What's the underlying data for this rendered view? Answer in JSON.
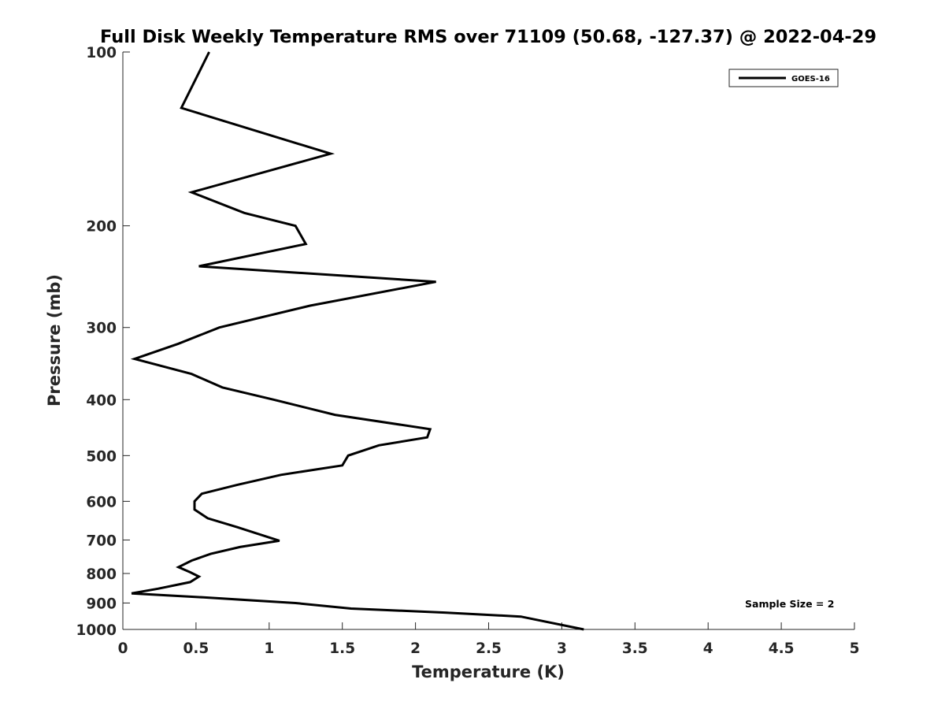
{
  "chart_data": {
    "type": "line",
    "title": "Full Disk Weekly Temperature RMS over 71109 (50.68, -127.37) @ 2022-04-29",
    "xlabel": "Temperature (K)",
    "ylabel": "Pressure (mb)",
    "xlim": [
      0,
      5
    ],
    "ylim": [
      100,
      1000
    ],
    "yscale": "log",
    "y_reversed": true,
    "grid": false,
    "legend_position": "top-right",
    "x_ticks": [
      "0",
      "0.5",
      "1",
      "1.5",
      "2",
      "2.5",
      "3",
      "3.5",
      "4",
      "4.5",
      "5"
    ],
    "y_ticks": [
      "100",
      "200",
      "300",
      "400",
      "500",
      "600",
      "700",
      "800",
      "900",
      "1000"
    ],
    "series": [
      {
        "name": "GOES-16",
        "color": "#000000",
        "points": [
          [
            0.59,
            100
          ],
          [
            0.4,
            125
          ],
          [
            1.42,
            150
          ],
          [
            0.47,
            175
          ],
          [
            0.83,
            190
          ],
          [
            1.18,
            200
          ],
          [
            1.25,
            215
          ],
          [
            0.52,
            235
          ],
          [
            2.14,
            250
          ],
          [
            1.28,
            275
          ],
          [
            0.66,
            300
          ],
          [
            0.38,
            320
          ],
          [
            0.08,
            340
          ],
          [
            0.47,
            361
          ],
          [
            0.68,
            381
          ],
          [
            1.03,
            400
          ],
          [
            1.45,
            425
          ],
          [
            2.1,
            450
          ],
          [
            2.08,
            465
          ],
          [
            1.75,
            480
          ],
          [
            1.54,
            500
          ],
          [
            1.5,
            520
          ],
          [
            1.08,
            540
          ],
          [
            0.78,
            562
          ],
          [
            0.54,
            582
          ],
          [
            0.49,
            600
          ],
          [
            0.49,
            620
          ],
          [
            0.58,
            642
          ],
          [
            0.78,
            665
          ],
          [
            1.07,
            702
          ],
          [
            0.8,
            720
          ],
          [
            0.6,
            740
          ],
          [
            0.47,
            760
          ],
          [
            0.38,
            780
          ],
          [
            0.46,
            796
          ],
          [
            0.52,
            810
          ],
          [
            0.46,
            828
          ],
          [
            0.24,
            850
          ],
          [
            0.06,
            866
          ],
          [
            0.55,
            880
          ],
          [
            1.18,
            900
          ],
          [
            1.56,
            920
          ],
          [
            2.2,
            935
          ],
          [
            2.72,
            950
          ],
          [
            3.15,
            1000
          ]
        ]
      }
    ],
    "annotation": "Sample Size = 2"
  }
}
